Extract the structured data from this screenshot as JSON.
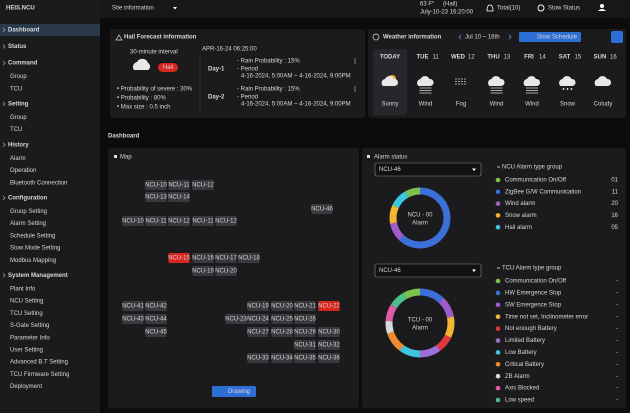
{
  "sidebar": {
    "logo": "HEIS.NCU",
    "menu": [
      {
        "label": "Dashboard"
      },
      {
        "label": "Status"
      },
      {
        "label": "Command",
        "items": [
          "Group",
          "TCU"
        ]
      },
      {
        "label": "Setting",
        "items": [
          "Group",
          "TCU"
        ]
      },
      {
        "label": "History",
        "items": [
          "Alarm",
          "Operation",
          "Bluetooth Connection"
        ]
      },
      {
        "label": "Configuration",
        "items": [
          "Gruop Setting",
          "Alarm Setting",
          "Schedule Setting",
          "Stow Mode Setting",
          "Modbus Mapping"
        ]
      },
      {
        "label": "System Management",
        "items": [
          "Plant Info",
          "NCU Setting",
          "TCU Setting",
          "S-Gate Setting",
          "Parameter Info",
          "User Setting",
          "Advanced B.T Setting",
          "TCU Firmware Setting",
          "Deployment"
        ]
      }
    ]
  },
  "topbar": {
    "site": "Site information",
    "temperature": "63 F°",
    "weather": "(Hail)",
    "datetime": "July-10-23 16:20:00",
    "total": "Total(10)",
    "stow": "Stow Status"
  },
  "hail": {
    "title": "Hail Forecast information",
    "interval": "30-minute interval",
    "badge": "Hail",
    "timestamp": "APR-16-24 06:25:00",
    "severe": "• Probability of severe : 30%",
    "probability": "• Probability : 80%",
    "max_size": "• Max size : 0.5 inch",
    "days": [
      {
        "label": "Day-1",
        "rain": "- Rain Probability : 15%",
        "period": "- Period",
        "range": "4-16-2024, 5:00AM ~ 4-16-2024, 9:00PM"
      },
      {
        "label": "Day-2",
        "rain": "- Rain Probability : 15%",
        "period": "- Period",
        "range": "4-16-2024, 5:00AM ~ 4-16-2024, 9:00PM"
      }
    ]
  },
  "weather": {
    "title": "Weather information",
    "range": "Jul 10 ~ 16th",
    "button": "Stow Schedule",
    "days": [
      {
        "day": "TODAY",
        "condition": "Sunny"
      },
      {
        "day": "TUE",
        "date": "11",
        "condition": "Wind"
      },
      {
        "day": "WED",
        "date": "12",
        "condition": "Fog"
      },
      {
        "day": "THU",
        "date": "13",
        "condition": "Wind"
      },
      {
        "day": "FRI",
        "date": "14",
        "condition": "Wind"
      },
      {
        "day": "SAT",
        "date": "15",
        "condition": "Snow"
      },
      {
        "day": "SUN",
        "date": "16",
        "condition": "Coludy"
      }
    ]
  },
  "dashboard": {
    "title": "Dashboard",
    "map": {
      "title": "Map",
      "button": "Drawing",
      "nodes": [
        {
          "label": "NCU-10"
        },
        {
          "label": "NCU-11"
        },
        {
          "label": "NCU-12"
        },
        {
          "label": "NCU-13"
        },
        {
          "label": "NCU-14"
        },
        {
          "label": "NCU-46"
        },
        {
          "label": "NCU-10"
        },
        {
          "label": "NCU-11"
        },
        {
          "label": "NCU-12"
        },
        {
          "label": "NCU-11"
        },
        {
          "label": "NCU-12"
        },
        {
          "label": "NCU-15",
          "color": "#d7261e"
        },
        {
          "label": "NCU-16"
        },
        {
          "label": "NCU-17"
        },
        {
          "label": "NCU-18"
        },
        {
          "label": "NCU-19"
        },
        {
          "label": "NCU-20"
        },
        {
          "label": "NCU-41"
        },
        {
          "label": "NCU-42"
        },
        {
          "label": "NCU-19"
        },
        {
          "label": "NCU-20"
        },
        {
          "label": "NCU-21"
        },
        {
          "label": "NCU-22",
          "color": "#d7261e"
        },
        {
          "label": "NCU-43"
        },
        {
          "label": "NCU-44"
        },
        {
          "label": "NCU-23"
        },
        {
          "label": "NCU-24"
        },
        {
          "label": "NCU-25"
        },
        {
          "label": "NCU-26"
        },
        {
          "label": "NCU-45"
        },
        {
          "label": "NCU-27"
        },
        {
          "label": "NCU-28"
        },
        {
          "label": "NCU-29"
        },
        {
          "label": "NCU-30"
        },
        {
          "label": "NCU-31"
        },
        {
          "label": "NCU-32"
        },
        {
          "label": "NCU-33"
        },
        {
          "label": "NCU-34"
        },
        {
          "label": "NCU-35"
        },
        {
          "label": "NCU-36"
        }
      ]
    },
    "alarm": {
      "title": "Alarm status",
      "groups": [
        {
          "select": "NCU-46",
          "center": "NCU - 00",
          "center_sub": "Alarm",
          "title": "NCU Alarm type group",
          "items": [
            {
              "label": "Communication On/Off",
              "count": "01",
              "color": "#7cc24a"
            },
            {
              "label": "ZigBee G/W Communication",
              "count": "11",
              "color": "#3d6fd9"
            },
            {
              "label": "Wind alarm",
              "count": "20",
              "color": "#a05cc8"
            },
            {
              "label": "Snow alarm",
              "count": "16",
              "color": "#f2b632"
            },
            {
              "label": "Hail alarm",
              "count": "05",
              "color": "#3ec6e0"
            }
          ]
        },
        {
          "select": "NCU-46",
          "center": "TCU - 00",
          "center_sub": "Alarm",
          "title": "TCU Alarm type group",
          "items": [
            {
              "label": "Communication On/Off",
              "count": "-",
              "color": "#7cc24a"
            },
            {
              "label": "HW Emergence Stop",
              "count": "-",
              "color": "#3d6fd9"
            },
            {
              "label": "SW Emergence Stop",
              "count": "-",
              "color": "#a05cc8"
            },
            {
              "label": "Time not set, Inclinometer error",
              "count": "-",
              "color": "#f2b632"
            },
            {
              "label": "Not enough Battery",
              "count": "-",
              "color": "#e0383e"
            },
            {
              "label": "Limited Battery",
              "count": "-",
              "color": "#9b6fd6"
            },
            {
              "label": "Low Battery",
              "count": "-",
              "color": "#3ec6e0"
            },
            {
              "label": "Critical Battery",
              "count": "-",
              "color": "#f08a2c"
            },
            {
              "label": "ZB Alarm",
              "count": "-",
              "color": "#d9d9d9"
            },
            {
              "label": "Axis Blocked",
              "count": "-",
              "color": "#e05aa8"
            },
            {
              "label": "Low speed",
              "count": "-",
              "color": "#4fbf8a"
            }
          ]
        }
      ]
    }
  }
}
